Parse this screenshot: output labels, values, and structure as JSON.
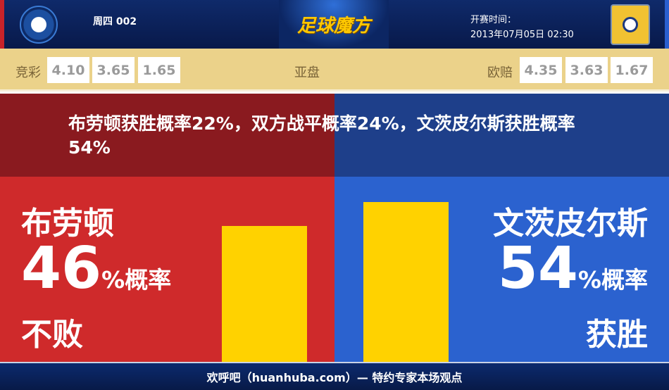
{
  "header": {
    "match_no": "周四 002",
    "brand": "足球魔方",
    "kickoff_label": "开赛时间：",
    "kickoff_time": "2013年07月05日 02:30"
  },
  "odds": {
    "jingcai_label": "竞彩",
    "jingcai": [
      "4.10",
      "3.65",
      "1.65"
    ],
    "asian_label": "亚盘",
    "euro_label": "欧赔",
    "euro": [
      "4.35",
      "3.63",
      "1.67"
    ]
  },
  "summary": "布劳顿获胜概率22%，双方战平概率24%，文茨皮尔斯获胜概率54%",
  "home": {
    "team": "布劳顿",
    "percent": "46",
    "unit": "%概率",
    "outcome": "不败",
    "value": 46,
    "color": "#cf2a2b"
  },
  "away": {
    "team": "文茨皮尔斯",
    "percent": "54",
    "unit": "%概率",
    "outcome": "获胜",
    "value": 54,
    "color": "#2b62cf"
  },
  "bar_color": "#ffd200",
  "footer": "欢呼吧（huanhuba.com）— 特约专家本场观点"
}
